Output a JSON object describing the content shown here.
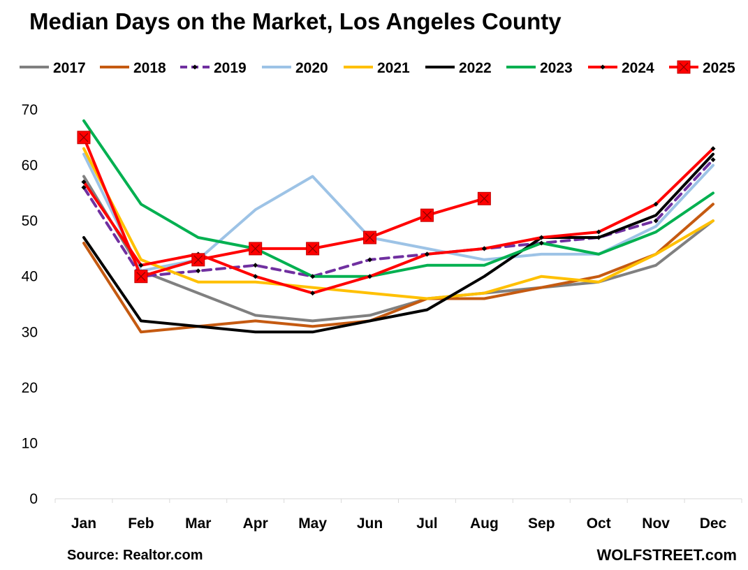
{
  "chart_data": {
    "type": "line",
    "title": "Median Days on the Market, Los Angeles County",
    "xlabel": "",
    "ylabel": "",
    "categories": [
      "Jan",
      "Feb",
      "Mar",
      "Apr",
      "May",
      "Jun",
      "Jul",
      "Aug",
      "Sep",
      "Oct",
      "Nov",
      "Dec"
    ],
    "ylim": [
      0,
      70
    ],
    "yticks": [
      0,
      10,
      20,
      30,
      40,
      50,
      60,
      70
    ],
    "grid": false,
    "legend_position": "top",
    "series": [
      {
        "name": "2017",
        "color": "#808080",
        "dash": false,
        "marker": "none",
        "values": [
          58,
          41,
          37,
          33,
          32,
          33,
          36,
          37,
          38,
          39,
          42,
          50
        ]
      },
      {
        "name": "2018",
        "color": "#C55A11",
        "dash": false,
        "marker": "none",
        "values": [
          46,
          30,
          31,
          32,
          31,
          32,
          36,
          36,
          38,
          40,
          44,
          53
        ]
      },
      {
        "name": "2019",
        "color": "#7030A0",
        "dash": true,
        "marker": "diamond",
        "values": [
          56,
          40,
          41,
          42,
          40,
          43,
          44,
          45,
          46,
          47,
          50,
          61
        ]
      },
      {
        "name": "2020",
        "color": "#9DC3E6",
        "dash": false,
        "marker": "none",
        "values": [
          62,
          41,
          43,
          52,
          58,
          47,
          45,
          43,
          44,
          44,
          49,
          60
        ]
      },
      {
        "name": "2021",
        "color": "#FFC000",
        "dash": false,
        "marker": "none",
        "values": [
          63,
          43,
          39,
          39,
          38,
          37,
          36,
          37,
          40,
          39,
          44,
          50
        ]
      },
      {
        "name": "2022",
        "color": "#000000",
        "dash": false,
        "marker": "none",
        "values": [
          47,
          32,
          31,
          30,
          30,
          32,
          34,
          40,
          47,
          47,
          51,
          62
        ]
      },
      {
        "name": "2023",
        "color": "#00B050",
        "dash": false,
        "marker": "none",
        "values": [
          68,
          53,
          47,
          45,
          40,
          40,
          42,
          42,
          46,
          44,
          48,
          55
        ]
      },
      {
        "name": "2024",
        "color": "#FF0000",
        "dash": false,
        "marker": "diamond",
        "values": [
          57,
          42,
          44,
          40,
          37,
          40,
          44,
          45,
          47,
          48,
          53,
          63
        ]
      },
      {
        "name": "2025",
        "color": "#FF0000",
        "dash": false,
        "marker": "square",
        "values": [
          65,
          40,
          43,
          45,
          45,
          47,
          51,
          54,
          null,
          null,
          null,
          null
        ]
      }
    ]
  },
  "footer": {
    "source": "Source: Realtor.com",
    "site": "WOLFSTREET.com"
  }
}
